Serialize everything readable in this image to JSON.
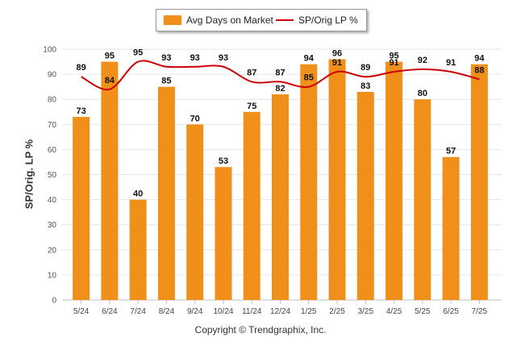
{
  "legend": {
    "bar_label": "Avg Days on Market",
    "line_label": "SP/Orig LP %"
  },
  "copyright": "Copyright © Trendgraphix, Inc.",
  "chart_data": {
    "type": "bar",
    "ylabel": "SP/Orig. LP %",
    "ylim": [
      0,
      100
    ],
    "yticks": [
      0,
      10,
      20,
      30,
      40,
      50,
      60,
      70,
      80,
      90,
      100
    ],
    "grid": true,
    "legend_position": "top-center",
    "categories": [
      "5/24",
      "6/24",
      "7/24",
      "8/24",
      "9/24",
      "10/24",
      "11/24",
      "12/24",
      "1/25",
      "2/25",
      "3/25",
      "4/25",
      "5/25",
      "6/25",
      "7/25"
    ],
    "series": [
      {
        "name": "Avg Days on Market",
        "type": "bar",
        "color": "#F0901A",
        "values": [
          73,
          95,
          40,
          85,
          70,
          53,
          75,
          82,
          94,
          96,
          83,
          95,
          80,
          57,
          94
        ]
      },
      {
        "name": "SP/Orig LP %",
        "type": "line",
        "color": "#CC0000",
        "values": [
          89,
          84,
          95,
          93,
          93,
          93,
          87,
          87,
          85,
          91,
          89,
          91,
          92,
          91,
          88
        ]
      }
    ]
  }
}
